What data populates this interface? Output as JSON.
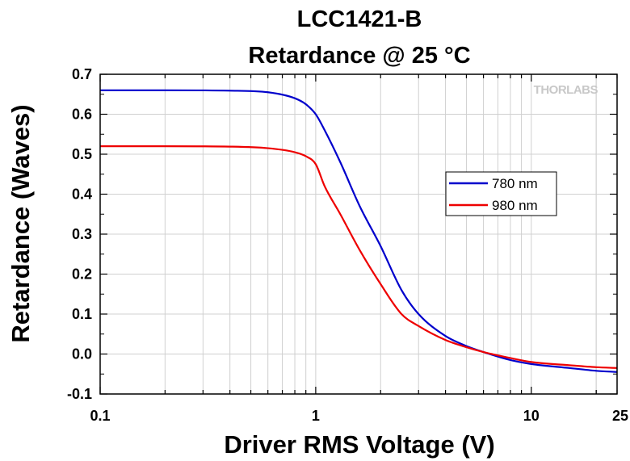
{
  "chart_data": {
    "type": "line",
    "title": [
      "LCC1421-B",
      "Retardance @ 25 °C"
    ],
    "xlabel": "Driver RMS Voltage (V)",
    "ylabel": "Retardance (Waves)",
    "xscale": "log",
    "xlim": [
      0.1,
      25
    ],
    "ylim": [
      -0.1,
      0.7
    ],
    "xticks": [
      0.1,
      1,
      10,
      25
    ],
    "xtick_labels": [
      "0.1",
      "1",
      "10",
      "25"
    ],
    "yticks": [
      -0.1,
      0.0,
      0.1,
      0.2,
      0.3,
      0.4,
      0.5,
      0.6,
      0.7
    ],
    "ytick_labels": [
      "-0.1",
      "0.0",
      "0.1",
      "0.2",
      "0.3",
      "0.4",
      "0.5",
      "0.6",
      "0.7"
    ],
    "grid": true,
    "legend_position": "center-right",
    "watermark": "THORLABS",
    "series": [
      {
        "name": "780 nm",
        "color": "#0000cc",
        "x": [
          0.1,
          0.2,
          0.4,
          0.6,
          0.8,
          0.9,
          1.0,
          1.1,
          1.3,
          1.6,
          2.0,
          2.5,
          3.0,
          4.0,
          5.0,
          6.0,
          8.0,
          10.0,
          15.0,
          20.0,
          25.0
        ],
        "y": [
          0.66,
          0.66,
          0.659,
          0.655,
          0.64,
          0.625,
          0.6,
          0.56,
          0.48,
          0.37,
          0.27,
          0.16,
          0.1,
          0.045,
          0.02,
          0.005,
          -0.015,
          -0.025,
          -0.035,
          -0.042,
          -0.045
        ]
      },
      {
        "name": "980 nm",
        "color": "#ee0000",
        "x": [
          0.1,
          0.2,
          0.4,
          0.6,
          0.8,
          0.9,
          1.0,
          1.1,
          1.3,
          1.6,
          2.0,
          2.5,
          3.0,
          4.0,
          5.0,
          6.0,
          8.0,
          10.0,
          15.0,
          20.0,
          25.0
        ],
        "y": [
          0.52,
          0.52,
          0.519,
          0.515,
          0.505,
          0.495,
          0.475,
          0.42,
          0.35,
          0.26,
          0.175,
          0.1,
          0.07,
          0.035,
          0.017,
          0.005,
          -0.01,
          -0.02,
          -0.028,
          -0.033,
          -0.035
        ]
      }
    ]
  }
}
